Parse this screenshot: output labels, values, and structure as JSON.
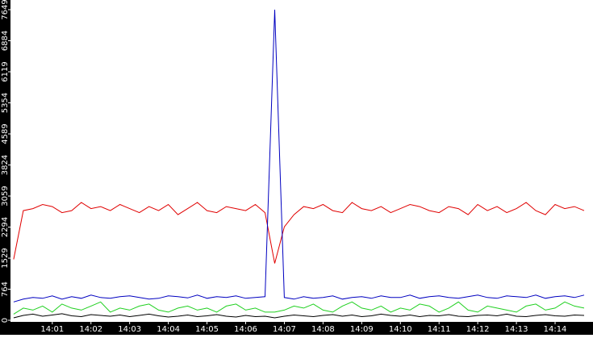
{
  "chart_data": {
    "type": "line",
    "x": [
      0,
      0.25,
      0.5,
      0.75,
      1,
      1.25,
      1.5,
      1.75,
      2,
      2.25,
      2.5,
      2.75,
      3,
      3.25,
      3.5,
      3.75,
      4,
      4.25,
      4.5,
      4.75,
      5,
      5.25,
      5.5,
      5.75,
      6,
      6.25,
      6.5,
      6.75,
      7,
      7.25,
      7.5,
      7.75,
      8,
      8.25,
      8.5,
      8.75,
      9,
      9.25,
      9.5,
      9.75,
      10,
      10.25,
      10.5,
      10.75,
      11,
      11.25,
      11.5,
      11.75,
      12,
      12.25,
      12.5,
      12.75,
      13,
      13.25,
      13.5,
      13.75,
      14,
      14.25,
      14.5,
      14.75
    ],
    "series": [
      {
        "color": "#e00000",
        "values": [
          1500,
          2700,
          2750,
          2850,
          2800,
          2650,
          2700,
          2900,
          2750,
          2800,
          2700,
          2850,
          2750,
          2650,
          2800,
          2700,
          2850,
          2600,
          2750,
          2900,
          2700,
          2650,
          2800,
          2750,
          2700,
          2850,
          2650,
          1400,
          2300,
          2600,
          2800,
          2750,
          2850,
          2700,
          2650,
          2900,
          2750,
          2700,
          2800,
          2650,
          2750,
          2850,
          2800,
          2700,
          2650,
          2800,
          2750,
          2600,
          2850,
          2700,
          2800,
          2650,
          2750,
          2900,
          2700,
          2600,
          2850,
          2750,
          2800,
          2700
        ]
      },
      {
        "color": "#0000c0",
        "values": [
          450,
          520,
          560,
          540,
          600,
          520,
          580,
          540,
          620,
          560,
          540,
          580,
          600,
          560,
          520,
          540,
          600,
          580,
          550,
          620,
          540,
          580,
          560,
          600,
          540,
          560,
          580,
          7649,
          560,
          520,
          580,
          540,
          560,
          600,
          520,
          560,
          580,
          540,
          600,
          560,
          560,
          620,
          540,
          580,
          600,
          560,
          540,
          580,
          620,
          560,
          540,
          600,
          580,
          560,
          620,
          540,
          580,
          600,
          560,
          620
        ]
      },
      {
        "color": "#20d020",
        "values": [
          150,
          300,
          250,
          350,
          200,
          400,
          300,
          250,
          350,
          450,
          200,
          300,
          250,
          350,
          400,
          250,
          200,
          300,
          350,
          250,
          300,
          200,
          350,
          400,
          250,
          300,
          200,
          200,
          250,
          350,
          300,
          400,
          250,
          200,
          350,
          450,
          300,
          250,
          350,
          200,
          300,
          250,
          400,
          350,
          200,
          300,
          450,
          250,
          200,
          350,
          300,
          250,
          200,
          350,
          400,
          250,
          300,
          450,
          350,
          300
        ]
      },
      {
        "color": "#000000",
        "values": [
          60,
          120,
          150,
          100,
          130,
          160,
          110,
          90,
          140,
          120,
          100,
          130,
          90,
          120,
          150,
          110,
          80,
          100,
          130,
          90,
          110,
          140,
          100,
          80,
          120,
          90,
          100,
          60,
          100,
          130,
          110,
          90,
          120,
          140,
          100,
          130,
          90,
          110,
          150,
          120,
          100,
          130,
          90,
          120,
          110,
          140,
          100,
          90,
          120,
          130,
          110,
          150,
          100,
          90,
          120,
          140,
          110,
          100,
          130,
          120
        ]
      }
    ],
    "xlim": [
      -0.06,
      14.98
    ],
    "xticks": [
      {
        "value": 1,
        "label": "14:01"
      },
      {
        "value": 2,
        "label": "14:02"
      },
      {
        "value": 3,
        "label": "14:03"
      },
      {
        "value": 4,
        "label": "14:04"
      },
      {
        "value": 5,
        "label": "14:05"
      },
      {
        "value": 6,
        "label": "14:06"
      },
      {
        "value": 7,
        "label": "14:07"
      },
      {
        "value": 8,
        "label": "14:08"
      },
      {
        "value": 9,
        "label": "14:09"
      },
      {
        "value": 10,
        "label": "14:10"
      },
      {
        "value": 11,
        "label": "14:11"
      },
      {
        "value": 12,
        "label": "14:12"
      },
      {
        "value": 13,
        "label": "14:13"
      },
      {
        "value": 14,
        "label": "14:14"
      }
    ],
    "ylim": [
      0,
      7887
    ],
    "yticks": [
      0,
      764,
      1529,
      2294,
      3059,
      3824,
      4589,
      5354,
      6119,
      6884,
      7649
    ]
  }
}
